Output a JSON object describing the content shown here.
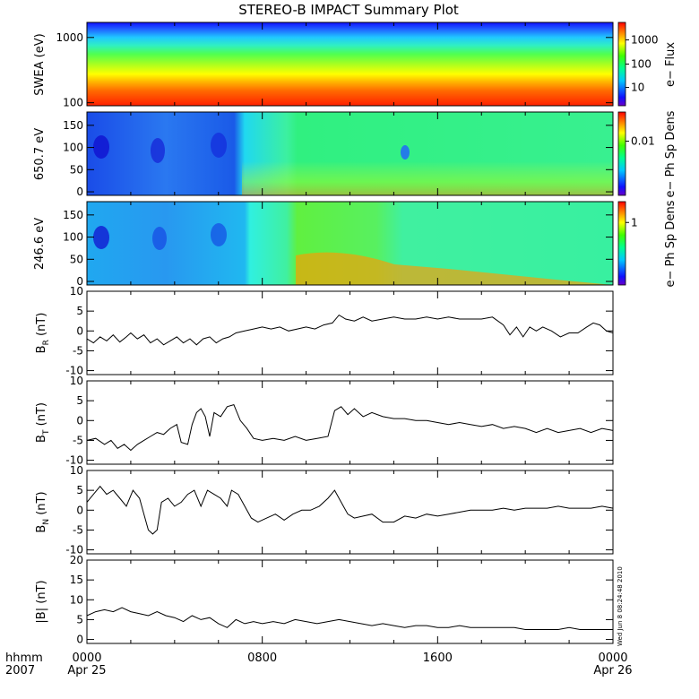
{
  "chart_data": {
    "type": "line",
    "title": "STEREO-B IMPACT Summary Plot",
    "x_axis": {
      "label_line1": "hhmm",
      "label_line2": "2007",
      "range": [
        0,
        24
      ],
      "ticks": [
        {
          "x": 0,
          "label": "0000",
          "date": "Apr 25"
        },
        {
          "x": 8,
          "label": "0800",
          "date": ""
        },
        {
          "x": 16,
          "label": "1600",
          "date": ""
        },
        {
          "x": 24,
          "label": "0000",
          "date": "Apr 26"
        }
      ]
    },
    "timestamp": "Wed Jun  8 08:24:48 2010",
    "spectrograms": [
      {
        "ylabel": "SWEA (eV)",
        "y_scale": "log",
        "ylim": [
          90,
          1700
        ],
        "y_ticks": [
          {
            "v": 100,
            "label": "100"
          },
          {
            "v": 1000,
            "label": "1000"
          }
        ],
        "colorbar_label": "e− Flux",
        "colorbar_ticks": [
          {
            "f": 0.22,
            "label": "10"
          },
          {
            "f": 0.5,
            "label": "100"
          },
          {
            "f": 0.79,
            "label": "1000"
          }
        ]
      },
      {
        "ylabel": "650.7 eV",
        "y_scale": "linear",
        "ylim": [
          -8,
          180
        ],
        "y_ticks": [
          {
            "v": 0,
            "label": "0"
          },
          {
            "v": 50,
            "label": "50"
          },
          {
            "v": 100,
            "label": "100"
          },
          {
            "v": 150,
            "label": "150"
          }
        ],
        "colorbar_label": "e− Ph Sp Dens",
        "colorbar_ticks": [
          {
            "f": 0.65,
            "label": "0.01"
          }
        ]
      },
      {
        "ylabel": "246.6 eV",
        "y_scale": "linear",
        "ylim": [
          -8,
          180
        ],
        "y_ticks": [
          {
            "v": 0,
            "label": "0"
          },
          {
            "v": 50,
            "label": "50"
          },
          {
            "v": 100,
            "label": "100"
          },
          {
            "v": 150,
            "label": "150"
          }
        ],
        "colorbar_label": "e− Ph Sp Dens",
        "colorbar_ticks": [
          {
            "f": 0.75,
            "label": "1"
          }
        ]
      }
    ],
    "series": [
      {
        "name": "BR",
        "ylabel_main": "B",
        "ylabel_sub": "R",
        "ylabel_unit": " (nT)",
        "ylim": [
          -11,
          10
        ],
        "y_ticks": [
          -10,
          -5,
          0,
          5,
          10
        ],
        "points": [
          [
            0,
            -2
          ],
          [
            0.3,
            -3
          ],
          [
            0.6,
            -1.5
          ],
          [
            0.9,
            -2.5
          ],
          [
            1.2,
            -1
          ],
          [
            1.5,
            -2.8
          ],
          [
            1.8,
            -1.5
          ],
          [
            2,
            -0.5
          ],
          [
            2.3,
            -2
          ],
          [
            2.6,
            -1
          ],
          [
            2.9,
            -3
          ],
          [
            3.2,
            -2
          ],
          [
            3.5,
            -3.5
          ],
          [
            3.8,
            -2.5
          ],
          [
            4.1,
            -1.5
          ],
          [
            4.4,
            -3
          ],
          [
            4.7,
            -2
          ],
          [
            5,
            -3.5
          ],
          [
            5.3,
            -2
          ],
          [
            5.6,
            -1.5
          ],
          [
            5.9,
            -3
          ],
          [
            6.2,
            -2
          ],
          [
            6.5,
            -1.5
          ],
          [
            6.8,
            -0.5
          ],
          [
            7.2,
            0
          ],
          [
            7.6,
            0.5
          ],
          [
            8,
            1
          ],
          [
            8.4,
            0.5
          ],
          [
            8.8,
            1
          ],
          [
            9.2,
            0
          ],
          [
            9.6,
            0.5
          ],
          [
            10,
            1
          ],
          [
            10.4,
            0.5
          ],
          [
            10.8,
            1.5
          ],
          [
            11.2,
            2
          ],
          [
            11.5,
            4
          ],
          [
            11.8,
            3
          ],
          [
            12.2,
            2.5
          ],
          [
            12.6,
            3.5
          ],
          [
            13,
            2.5
          ],
          [
            13.5,
            3
          ],
          [
            14,
            3.5
          ],
          [
            14.5,
            3
          ],
          [
            15,
            3
          ],
          [
            15.5,
            3.5
          ],
          [
            16,
            3
          ],
          [
            16.5,
            3.5
          ],
          [
            17,
            3
          ],
          [
            17.5,
            3
          ],
          [
            18,
            3
          ],
          [
            18.5,
            3.5
          ],
          [
            19,
            1.5
          ],
          [
            19.3,
            -1
          ],
          [
            19.6,
            1
          ],
          [
            19.9,
            -1.5
          ],
          [
            20.2,
            1
          ],
          [
            20.5,
            0
          ],
          [
            20.8,
            1
          ],
          [
            21.2,
            0
          ],
          [
            21.6,
            -1.5
          ],
          [
            22,
            -0.5
          ],
          [
            22.4,
            -0.5
          ],
          [
            22.8,
            1
          ],
          [
            23.1,
            2
          ],
          [
            23.4,
            1.5
          ],
          [
            23.7,
            0
          ],
          [
            24,
            -0.5
          ]
        ]
      },
      {
        "name": "BT",
        "ylabel_main": "B",
        "ylabel_sub": "T",
        "ylabel_unit": " (nT)",
        "ylim": [
          -11,
          10
        ],
        "y_ticks": [
          -10,
          -5,
          0,
          5,
          10
        ],
        "points": [
          [
            0,
            -5
          ],
          [
            0.4,
            -4.5
          ],
          [
            0.8,
            -6
          ],
          [
            1.1,
            -5
          ],
          [
            1.4,
            -7
          ],
          [
            1.7,
            -6
          ],
          [
            2,
            -7.5
          ],
          [
            2.3,
            -6
          ],
          [
            2.6,
            -5
          ],
          [
            2.9,
            -4
          ],
          [
            3.2,
            -3
          ],
          [
            3.5,
            -3.5
          ],
          [
            3.8,
            -2
          ],
          [
            4.1,
            -1
          ],
          [
            4.3,
            -5.5
          ],
          [
            4.6,
            -6
          ],
          [
            4.8,
            -1
          ],
          [
            5,
            2
          ],
          [
            5.2,
            3
          ],
          [
            5.4,
            1
          ],
          [
            5.6,
            -4
          ],
          [
            5.8,
            2
          ],
          [
            6.1,
            1
          ],
          [
            6.4,
            3.5
          ],
          [
            6.7,
            4
          ],
          [
            7,
            0
          ],
          [
            7.3,
            -2
          ],
          [
            7.6,
            -4.5
          ],
          [
            8,
            -5
          ],
          [
            8.5,
            -4.5
          ],
          [
            9,
            -5
          ],
          [
            9.5,
            -4
          ],
          [
            10,
            -5
          ],
          [
            10.5,
            -4.5
          ],
          [
            11,
            -4
          ],
          [
            11.3,
            2.5
          ],
          [
            11.6,
            3.5
          ],
          [
            11.9,
            1.5
          ],
          [
            12.2,
            3
          ],
          [
            12.6,
            1
          ],
          [
            13,
            2
          ],
          [
            13.5,
            1
          ],
          [
            14,
            0.5
          ],
          [
            14.5,
            0.5
          ],
          [
            15,
            0
          ],
          [
            15.5,
            0
          ],
          [
            16,
            -0.5
          ],
          [
            16.5,
            -1
          ],
          [
            17,
            -0.5
          ],
          [
            17.5,
            -1
          ],
          [
            18,
            -1.5
          ],
          [
            18.5,
            -1
          ],
          [
            19,
            -2
          ],
          [
            19.5,
            -1.5
          ],
          [
            20,
            -2
          ],
          [
            20.5,
            -3
          ],
          [
            21,
            -2
          ],
          [
            21.5,
            -3
          ],
          [
            22,
            -2.5
          ],
          [
            22.5,
            -2
          ],
          [
            23,
            -3
          ],
          [
            23.5,
            -2
          ],
          [
            24,
            -2.5
          ]
        ]
      },
      {
        "name": "BN",
        "ylabel_main": "B",
        "ylabel_sub": "N",
        "ylabel_unit": " (nT)",
        "ylim": [
          -11,
          10
        ],
        "y_ticks": [
          -10,
          -5,
          0,
          5,
          10
        ],
        "points": [
          [
            0,
            2
          ],
          [
            0.3,
            4
          ],
          [
            0.6,
            6
          ],
          [
            0.9,
            4
          ],
          [
            1.2,
            5
          ],
          [
            1.5,
            3
          ],
          [
            1.8,
            1
          ],
          [
            2.1,
            5
          ],
          [
            2.4,
            3
          ],
          [
            2.6,
            -1
          ],
          [
            2.8,
            -5
          ],
          [
            3,
            -6
          ],
          [
            3.2,
            -5
          ],
          [
            3.4,
            2
          ],
          [
            3.7,
            3
          ],
          [
            4,
            1
          ],
          [
            4.3,
            2
          ],
          [
            4.6,
            4
          ],
          [
            4.9,
            5
          ],
          [
            5.2,
            1
          ],
          [
            5.5,
            5
          ],
          [
            5.8,
            4
          ],
          [
            6.1,
            3
          ],
          [
            6.4,
            1
          ],
          [
            6.6,
            5
          ],
          [
            6.9,
            4
          ],
          [
            7.2,
            1
          ],
          [
            7.5,
            -2
          ],
          [
            7.8,
            -3
          ],
          [
            8.2,
            -2
          ],
          [
            8.6,
            -1
          ],
          [
            9,
            -2.5
          ],
          [
            9.4,
            -1
          ],
          [
            9.8,
            0
          ],
          [
            10.2,
            0
          ],
          [
            10.6,
            1
          ],
          [
            11,
            3
          ],
          [
            11.3,
            5
          ],
          [
            11.6,
            2
          ],
          [
            11.9,
            -1
          ],
          [
            12.2,
            -2
          ],
          [
            12.6,
            -1.5
          ],
          [
            13,
            -1
          ],
          [
            13.5,
            -3
          ],
          [
            14,
            -3
          ],
          [
            14.5,
            -1.5
          ],
          [
            15,
            -2
          ],
          [
            15.5,
            -1
          ],
          [
            16,
            -1.5
          ],
          [
            16.5,
            -1
          ],
          [
            17,
            -0.5
          ],
          [
            17.5,
            0
          ],
          [
            18,
            0
          ],
          [
            18.5,
            0
          ],
          [
            19,
            0.5
          ],
          [
            19.5,
            0
          ],
          [
            20,
            0.5
          ],
          [
            20.5,
            0.5
          ],
          [
            21,
            0.5
          ],
          [
            21.5,
            1
          ],
          [
            22,
            0.5
          ],
          [
            22.5,
            0.5
          ],
          [
            23,
            0.5
          ],
          [
            23.5,
            1
          ],
          [
            24,
            0.5
          ]
        ]
      },
      {
        "name": "|B|",
        "ylabel_main": "|B|",
        "ylabel_sub": "",
        "ylabel_unit": " (nT)",
        "ylim": [
          -1,
          20
        ],
        "y_ticks": [
          0,
          5,
          10,
          15,
          20
        ],
        "points": [
          [
            0,
            6
          ],
          [
            0.4,
            7
          ],
          [
            0.8,
            7.5
          ],
          [
            1.2,
            7
          ],
          [
            1.6,
            8
          ],
          [
            2,
            7
          ],
          [
            2.4,
            6.5
          ],
          [
            2.8,
            6
          ],
          [
            3.2,
            7
          ],
          [
            3.6,
            6
          ],
          [
            4,
            5.5
          ],
          [
            4.4,
            4.5
          ],
          [
            4.8,
            6
          ],
          [
            5.2,
            5
          ],
          [
            5.6,
            5.5
          ],
          [
            6,
            4
          ],
          [
            6.4,
            3
          ],
          [
            6.8,
            5
          ],
          [
            7.2,
            4
          ],
          [
            7.6,
            4.5
          ],
          [
            8,
            4
          ],
          [
            8.5,
            4.5
          ],
          [
            9,
            4
          ],
          [
            9.5,
            5
          ],
          [
            10,
            4.5
          ],
          [
            10.5,
            4
          ],
          [
            11,
            4.5
          ],
          [
            11.5,
            5
          ],
          [
            12,
            4.5
          ],
          [
            12.5,
            4
          ],
          [
            13,
            3.5
          ],
          [
            13.5,
            4
          ],
          [
            14,
            3.5
          ],
          [
            14.5,
            3
          ],
          [
            15,
            3.5
          ],
          [
            15.5,
            3.5
          ],
          [
            16,
            3
          ],
          [
            16.5,
            3
          ],
          [
            17,
            3.5
          ],
          [
            17.5,
            3
          ],
          [
            18,
            3
          ],
          [
            18.5,
            3
          ],
          [
            19,
            3
          ],
          [
            19.5,
            3
          ],
          [
            20,
            2.5
          ],
          [
            20.5,
            2.5
          ],
          [
            21,
            2.5
          ],
          [
            21.5,
            2.5
          ],
          [
            22,
            3
          ],
          [
            22.5,
            2.5
          ],
          [
            23,
            2.5
          ],
          [
            23.5,
            2.5
          ],
          [
            24,
            2.5
          ]
        ]
      }
    ]
  }
}
